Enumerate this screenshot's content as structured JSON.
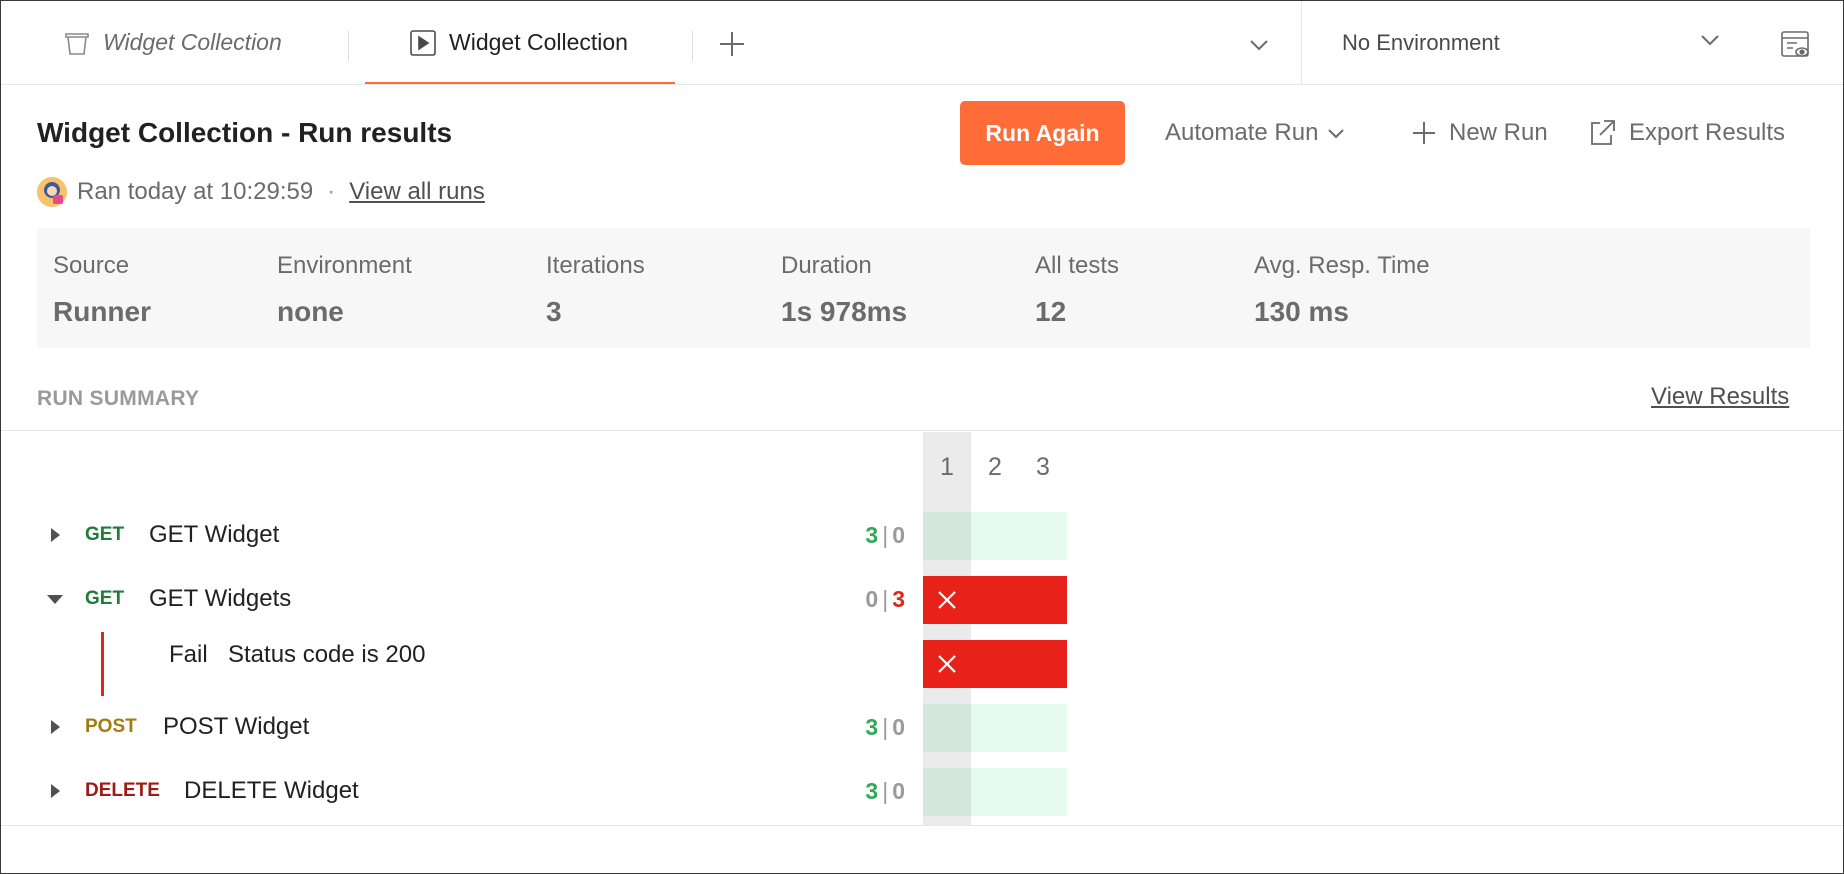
{
  "tabs": [
    {
      "label": "Widget Collection",
      "icon": "collection-icon",
      "state": "preview"
    },
    {
      "label": "Widget Collection",
      "icon": "runner-icon",
      "state": "active"
    }
  ],
  "environment": {
    "selected": "No Environment"
  },
  "header": {
    "title": "Widget Collection - Run results",
    "ran_at": "Ran today at 10:29:59",
    "separator": "·",
    "view_all_runs": "View all runs"
  },
  "actions": {
    "run_again": "Run Again",
    "automate_run": "Automate Run",
    "new_run": "New Run",
    "export_results": "Export Results"
  },
  "stats": [
    {
      "label": "Source",
      "value": "Runner"
    },
    {
      "label": "Environment",
      "value": "none"
    },
    {
      "label": "Iterations",
      "value": "3"
    },
    {
      "label": "Duration",
      "value": "1s 978ms"
    },
    {
      "label": "All tests",
      "value": "12"
    },
    {
      "label": "Avg. Resp. Time",
      "value": "130 ms"
    }
  ],
  "summary": {
    "label": "RUN SUMMARY",
    "view_results": "View Results",
    "iteration_headers": [
      "1",
      "2",
      "3"
    ],
    "selected_iteration": "1",
    "count_separator": "|",
    "requests": [
      {
        "method": "GET",
        "method_color": "#1e7b3c",
        "name": "GET Widget",
        "passed": "3",
        "failed": "0",
        "expanded": false,
        "cells": [
          "pass",
          "pass",
          "pass"
        ]
      },
      {
        "method": "GET",
        "method_color": "#1e7b3c",
        "name": "GET Widgets",
        "passed": "0",
        "failed": "3",
        "expanded": true,
        "cells": [
          "fail",
          "fail",
          "fail"
        ],
        "tests": [
          {
            "status": "Fail",
            "name": "Status code is 200",
            "cells": [
              "fail",
              "fail",
              "fail"
            ]
          }
        ]
      },
      {
        "method": "POST",
        "method_color": "#a27c0f",
        "name": "POST Widget",
        "passed": "3",
        "failed": "0",
        "expanded": false,
        "cells": [
          "pass",
          "pass",
          "pass"
        ]
      },
      {
        "method": "DELETE",
        "method_color": "#9c1b14",
        "name": "DELETE Widget",
        "passed": "3",
        "failed": "0",
        "expanded": false,
        "cells": [
          "pass",
          "pass",
          "pass"
        ]
      }
    ]
  },
  "colors": {
    "accent": "#ff6c37",
    "pass": "#2eaa5a",
    "fail": "#e0261f",
    "pass_cell": "#e5fbef",
    "fail_cell": "#e8221b"
  }
}
